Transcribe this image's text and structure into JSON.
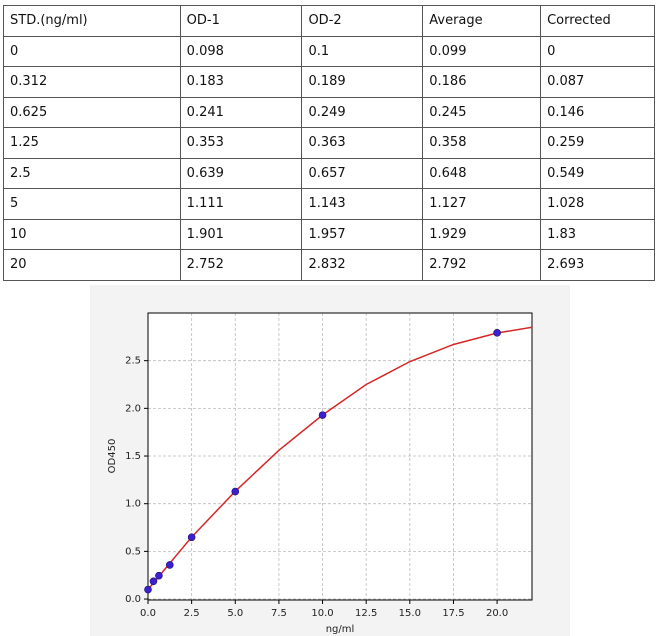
{
  "table": {
    "header": [
      "STD.(ng/ml)",
      "OD-1",
      "OD-2",
      "Average",
      "Corrected"
    ],
    "rows": [
      [
        "0",
        "0.098",
        "0.1",
        "0.099",
        "0"
      ],
      [
        "0.312",
        "0.183",
        "0.189",
        "0.186",
        "0.087"
      ],
      [
        "0.625",
        "0.241",
        "0.249",
        "0.245",
        "0.146"
      ],
      [
        "1.25",
        "0.353",
        "0.363",
        "0.358",
        "0.259"
      ],
      [
        "2.5",
        "0.639",
        "0.657",
        "0.648",
        "0.549"
      ],
      [
        "5",
        "1.111",
        "1.143",
        "1.127",
        "1.028"
      ],
      [
        "10",
        "1.901",
        "1.957",
        "1.929",
        "1.83"
      ],
      [
        "20",
        "2.752",
        "2.832",
        "2.792",
        "2.693"
      ]
    ]
  },
  "chart_data": {
    "type": "scatter",
    "x_label": "ng/ml",
    "y_label": "OD450",
    "xlim": [
      0,
      22
    ],
    "ylim": [
      -0.01,
      3.0
    ],
    "xticks": [
      {
        "value": 0,
        "label": "0.0"
      },
      {
        "value": 2.5,
        "label": "2.5"
      },
      {
        "value": 5,
        "label": "5.0"
      },
      {
        "value": 7.5,
        "label": "7.5"
      },
      {
        "value": 10,
        "label": "10.0"
      },
      {
        "value": 12.5,
        "label": "12.5"
      },
      {
        "value": 15,
        "label": "15.0"
      },
      {
        "value": 17.5,
        "label": "17.5"
      },
      {
        "value": 20,
        "label": "20.0"
      }
    ],
    "yticks": [
      {
        "value": 0,
        "label": "0.0"
      },
      {
        "value": 0.5,
        "label": "0.5"
      },
      {
        "value": 1,
        "label": "1.0"
      },
      {
        "value": 1.5,
        "label": "1.5"
      },
      {
        "value": 2,
        "label": "2.0"
      },
      {
        "value": 2.5,
        "label": "2.5"
      }
    ],
    "grid": true,
    "series": [
      {
        "kind": "points",
        "color": "#3b1fd0",
        "x": [
          0,
          0.312,
          0.625,
          1.25,
          2.5,
          5,
          10,
          20
        ],
        "values": [
          0.099,
          0.186,
          0.245,
          0.358,
          0.648,
          1.127,
          1.929,
          2.792
        ]
      },
      {
        "kind": "line",
        "color": "#d62728",
        "x": [
          0,
          1,
          2.5,
          5,
          7.5,
          10,
          12.5,
          15,
          17.5,
          20,
          22
        ],
        "values": [
          0.1,
          0.32,
          0.65,
          1.13,
          1.56,
          1.93,
          2.25,
          2.49,
          2.67,
          2.79,
          2.85
        ]
      }
    ]
  }
}
